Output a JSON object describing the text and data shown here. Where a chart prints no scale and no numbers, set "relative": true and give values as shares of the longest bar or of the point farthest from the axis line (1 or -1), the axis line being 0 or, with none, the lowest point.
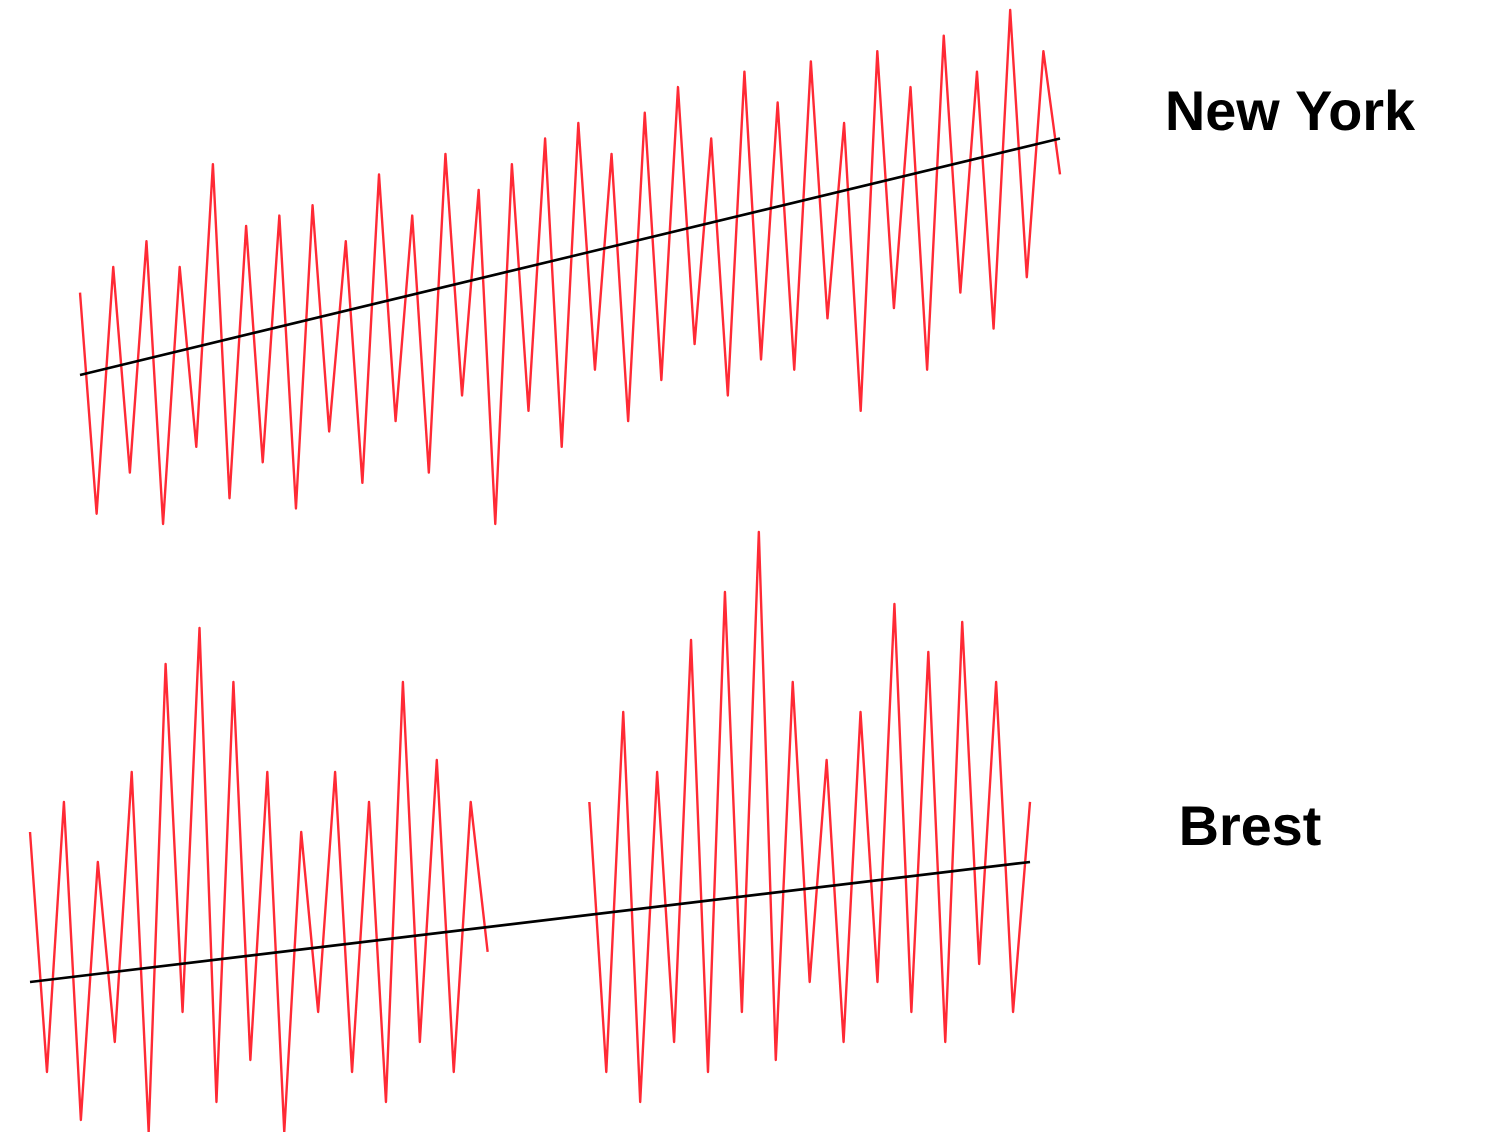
{
  "chart_data": [
    {
      "type": "line",
      "relative": true,
      "categories": [
        null,
        null,
        null,
        null,
        null,
        null,
        null,
        null,
        null,
        null,
        null,
        null,
        null,
        null,
        null,
        null,
        null,
        null,
        null,
        null,
        null,
        null,
        null,
        null,
        null,
        null,
        null,
        null,
        null,
        null,
        null,
        null,
        null,
        null,
        null,
        null,
        null,
        null,
        null,
        null,
        null,
        null,
        null,
        null,
        null,
        null,
        null,
        null,
        null,
        null,
        null,
        null,
        null,
        null,
        null,
        null,
        null,
        null,
        null,
        null
      ],
      "series": [
        {
          "type": "line",
          "name": "New York",
          "color": "#ff2a35",
          "values": [
            0.45,
            0.02,
            0.5,
            0.1,
            0.55,
            0.0,
            0.5,
            0.15,
            0.7,
            0.05,
            0.58,
            0.12,
            0.6,
            0.03,
            0.62,
            0.18,
            0.55,
            0.08,
            0.68,
            0.2,
            0.6,
            0.1,
            0.72,
            0.25,
            0.65,
            0.0,
            0.7,
            0.22,
            0.75,
            0.15,
            0.78,
            0.3,
            0.72,
            0.2,
            0.8,
            0.28,
            0.85,
            0.35,
            0.75,
            0.25,
            0.88,
            0.32,
            0.82,
            0.3,
            0.9,
            0.4,
            0.78,
            0.22,
            0.92,
            0.42,
            0.85,
            0.3,
            0.95,
            0.45,
            0.88,
            0.38,
            1.0,
            0.48,
            0.92,
            0.68
          ]
        },
        {
          "type": "line",
          "color": "#000000",
          "values": [
            0.29,
            null,
            null,
            null,
            null,
            null,
            null,
            null,
            null,
            null,
            null,
            null,
            null,
            null,
            null,
            null,
            null,
            null,
            null,
            null,
            null,
            null,
            null,
            null,
            null,
            null,
            null,
            null,
            null,
            null,
            null,
            null,
            null,
            null,
            null,
            null,
            null,
            null,
            null,
            null,
            null,
            null,
            null,
            null,
            null,
            null,
            null,
            null,
            null,
            null,
            null,
            null,
            null,
            null,
            null,
            null,
            null,
            null,
            null,
            0.75
          ]
        }
      ]
    },
    {
      "type": "line",
      "relative": true,
      "categories": [
        null,
        null,
        null,
        null,
        null,
        null,
        null,
        null,
        null,
        null,
        null,
        null,
        null,
        null,
        null,
        null,
        null,
        null,
        null,
        null,
        null,
        null,
        null,
        null,
        null,
        null,
        null,
        null,
        null,
        null,
        null,
        null,
        null,
        null,
        null,
        null,
        null,
        null,
        null,
        null,
        null,
        null,
        null,
        null,
        null,
        null,
        null,
        null,
        null,
        null,
        null,
        null,
        null,
        null,
        null,
        null,
        null,
        null,
        null,
        null
      ],
      "series": [
        {
          "type": "line",
          "name": "Brest",
          "color": "#ff2a35",
          "values": [
            0.5,
            0.1,
            0.55,
            0.02,
            0.45,
            0.15,
            0.6,
            0.0,
            0.78,
            0.2,
            0.84,
            0.05,
            0.75,
            0.12,
            0.6,
            0.0,
            0.5,
            0.2,
            0.6,
            0.1,
            0.55,
            0.05,
            0.75,
            0.15,
            0.62,
            0.1,
            0.55,
            0.3,
            null,
            null,
            null,
            null,
            null,
            0.55,
            0.1,
            0.7,
            0.05,
            0.6,
            0.15,
            0.82,
            0.1,
            0.9,
            0.2,
            1.0,
            0.12,
            0.75,
            0.25,
            0.62,
            0.15,
            0.7,
            0.25,
            0.88,
            0.2,
            0.8,
            0.15,
            0.85,
            0.28,
            0.75,
            0.2,
            0.55
          ]
        },
        {
          "type": "line",
          "color": "#000000",
          "values": [
            0.25,
            null,
            null,
            null,
            null,
            null,
            null,
            null,
            null,
            null,
            null,
            null,
            null,
            null,
            null,
            null,
            null,
            null,
            null,
            null,
            null,
            null,
            null,
            null,
            null,
            null,
            null,
            null,
            null,
            null,
            null,
            null,
            null,
            null,
            null,
            null,
            null,
            null,
            null,
            null,
            null,
            null,
            null,
            null,
            null,
            null,
            null,
            null,
            null,
            null,
            null,
            null,
            null,
            null,
            null,
            null,
            null,
            null,
            null,
            0.45
          ]
        }
      ]
    }
  ]
}
